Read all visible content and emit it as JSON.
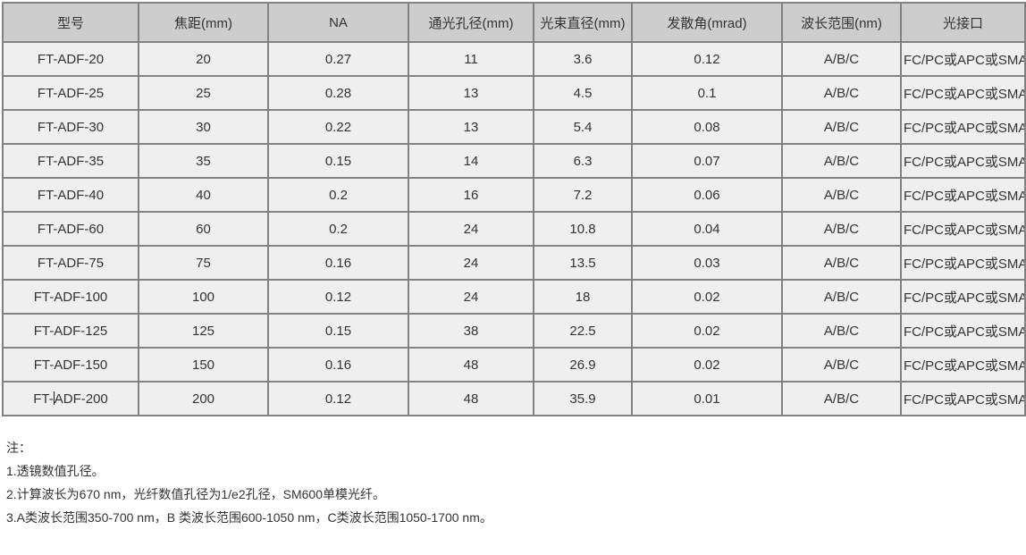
{
  "table": {
    "columns": [
      "型号",
      "焦距(mm)",
      "NA",
      "通光孔径(mm)",
      "光束直径(mm)",
      "发散角(mrad)",
      "波长范围(nm)",
      "光接口"
    ],
    "rows": [
      [
        "FT-ADF-20",
        "20",
        "0.27",
        "11",
        "3.6",
        "0.12",
        "A/B/C",
        "FC/PC或APC或SMA"
      ],
      [
        "FT-ADF-25",
        "25",
        "0.28",
        "13",
        "4.5",
        "0.1",
        "A/B/C",
        "FC/PC或APC或SMA"
      ],
      [
        "FT-ADF-30",
        "30",
        "0.22",
        "13",
        "5.4",
        "0.08",
        "A/B/C",
        "FC/PC或APC或SMA"
      ],
      [
        "FT-ADF-35",
        "35",
        "0.15",
        "14",
        "6.3",
        "0.07",
        "A/B/C",
        "FC/PC或APC或SMA"
      ],
      [
        "FT-ADF-40",
        "40",
        "0.2",
        "16",
        "7.2",
        "0.06",
        "A/B/C",
        "FC/PC或APC或SMA"
      ],
      [
        "FT-ADF-60",
        "60",
        "0.2",
        "24",
        "10.8",
        "0.04",
        "A/B/C",
        "FC/PC或APC或SMA"
      ],
      [
        "FT-ADF-75",
        "75",
        "0.16",
        "24",
        "13.5",
        "0.03",
        "A/B/C",
        "FC/PC或APC或SMA"
      ],
      [
        "FT-ADF-100",
        "100",
        "0.12",
        "24",
        "18",
        "0.02",
        "A/B/C",
        "FC/PC或APC或SMA"
      ],
      [
        "FT-ADF-125",
        "125",
        "0.15",
        "38",
        "22.5",
        "0.02",
        "A/B/C",
        "FC/PC或APC或SMA"
      ],
      [
        "FT-ADF-150",
        "150",
        "0.16",
        "48",
        "26.9",
        "0.02",
        "A/B/C",
        "FC/PC或APC或SMA"
      ],
      [
        "FT-ADF-200",
        "200",
        "0.12",
        "48",
        "35.9",
        "0.01",
        "A/B/C",
        "FC/PC或APC或SMA"
      ]
    ],
    "text_cursor": {
      "row_index": 10,
      "column_index": 0,
      "split_after": "FT-"
    }
  },
  "notes": {
    "title": "注：",
    "items": [
      "1.透镜数值孔径。",
      "2.计算波长为670 nm，光纤数值孔径为1/e2孔径，SM600单模光纤。",
      "3.A类波长范围350-700 nm，B 类波长范围600-1050 nm，C类波长范围1050-1700 nm。"
    ]
  },
  "colors": {
    "page_bg": "#ffffff",
    "header_bg": "#cdcdcd",
    "row_bg": "#efefef",
    "border": "#828282",
    "text": "#333333"
  }
}
